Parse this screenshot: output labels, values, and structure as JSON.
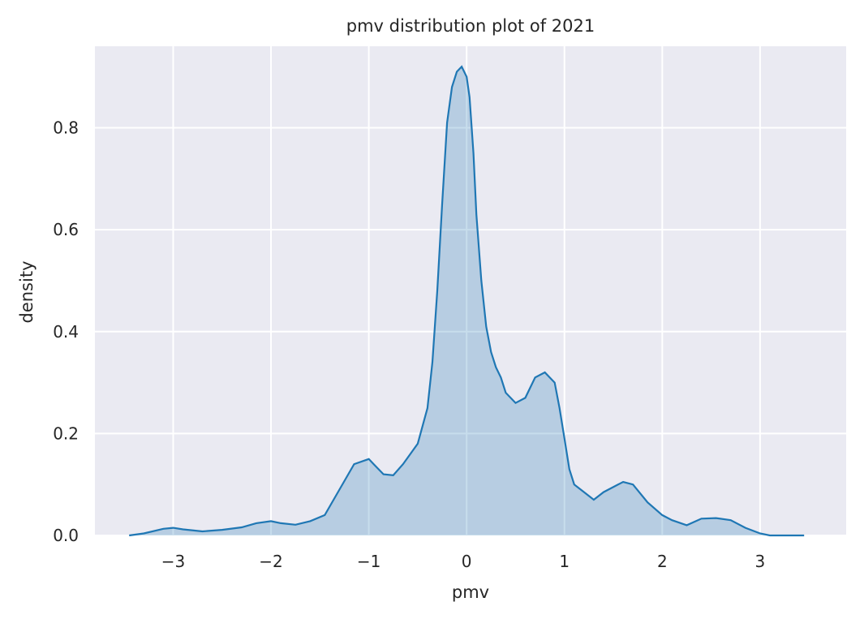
{
  "chart_data": {
    "type": "area",
    "title": "pmv distribution plot of 2021",
    "xlabel": "pmv",
    "ylabel": "density",
    "xlim": [
      -3.8,
      3.88
    ],
    "ylim": [
      0,
      0.96
    ],
    "x_ticks": [
      -3,
      -2,
      -1,
      0,
      1,
      2,
      3
    ],
    "x_tick_labels": [
      "−3",
      "−2",
      "−1",
      "0",
      "1",
      "2",
      "3"
    ],
    "y_ticks": [
      0.0,
      0.2,
      0.4,
      0.6,
      0.8
    ],
    "y_tick_labels": [
      "0.0",
      "0.2",
      "0.4",
      "0.6",
      "0.8"
    ],
    "grid": true,
    "colors": {
      "line": "#1f77b4",
      "fill": "#1f77b4",
      "background": "#eaeaf2",
      "grid": "#ffffff"
    },
    "series": [
      {
        "x": [
          -3.45,
          -3.3,
          -3.1,
          -3.0,
          -2.9,
          -2.7,
          -2.5,
          -2.3,
          -2.15,
          -2.0,
          -1.9,
          -1.75,
          -1.6,
          -1.45,
          -1.3,
          -1.15,
          -1.0,
          -0.95,
          -0.85,
          -0.75,
          -0.65,
          -0.5,
          -0.4,
          -0.35,
          -0.3,
          -0.25,
          -0.2,
          -0.15,
          -0.1,
          -0.05,
          0.0,
          0.03,
          0.07,
          0.1,
          0.15,
          0.2,
          0.25,
          0.3,
          0.35,
          0.4,
          0.5,
          0.6,
          0.7,
          0.8,
          0.9,
          0.95,
          1.0,
          1.05,
          1.1,
          1.2,
          1.3,
          1.4,
          1.6,
          1.7,
          1.85,
          2.0,
          2.1,
          2.25,
          2.4,
          2.55,
          2.7,
          2.85,
          3.0,
          3.1,
          3.2,
          3.35,
          3.45
        ],
        "y": [
          0.0,
          0.004,
          0.013,
          0.015,
          0.012,
          0.008,
          0.011,
          0.016,
          0.024,
          0.028,
          0.024,
          0.021,
          0.028,
          0.04,
          0.09,
          0.14,
          0.15,
          0.14,
          0.12,
          0.118,
          0.14,
          0.18,
          0.25,
          0.34,
          0.48,
          0.65,
          0.81,
          0.88,
          0.91,
          0.92,
          0.9,
          0.86,
          0.75,
          0.63,
          0.5,
          0.41,
          0.36,
          0.33,
          0.31,
          0.28,
          0.26,
          0.27,
          0.31,
          0.32,
          0.3,
          0.25,
          0.19,
          0.13,
          0.1,
          0.085,
          0.07,
          0.085,
          0.105,
          0.1,
          0.065,
          0.04,
          0.03,
          0.02,
          0.033,
          0.034,
          0.03,
          0.015,
          0.004,
          0.0,
          0.0,
          0.0,
          0.0
        ]
      }
    ]
  }
}
